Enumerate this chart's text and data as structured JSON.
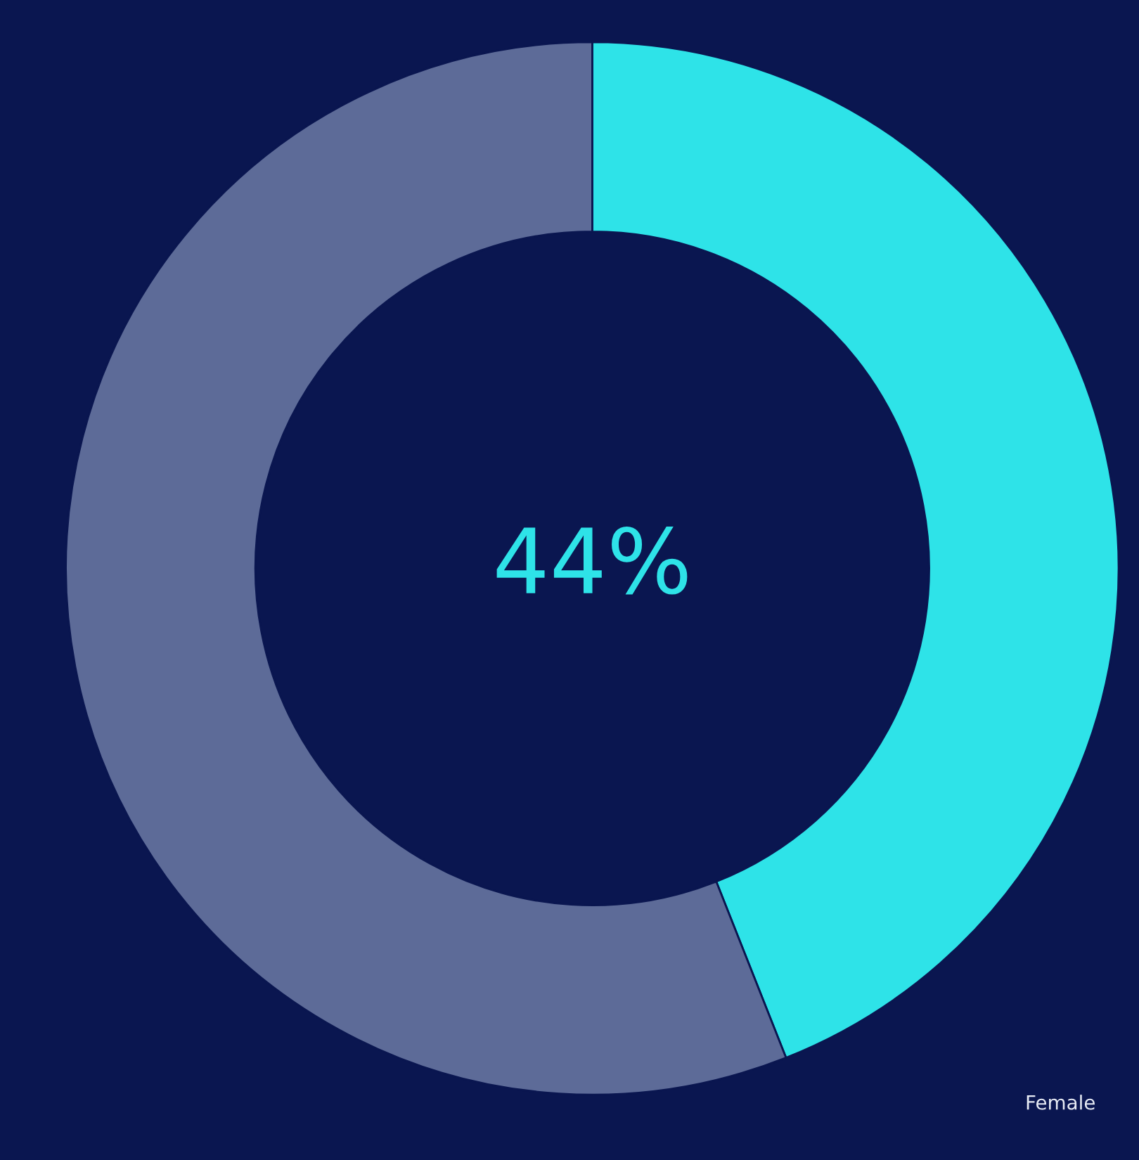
{
  "chart_data": {
    "type": "donut",
    "categories": [
      null,
      null
    ],
    "values": [
      44,
      56
    ],
    "colors": [
      "#2ee3e8",
      "#5d6b98"
    ],
    "annotations": [
      "44%",
      "Female"
    ]
  }
}
